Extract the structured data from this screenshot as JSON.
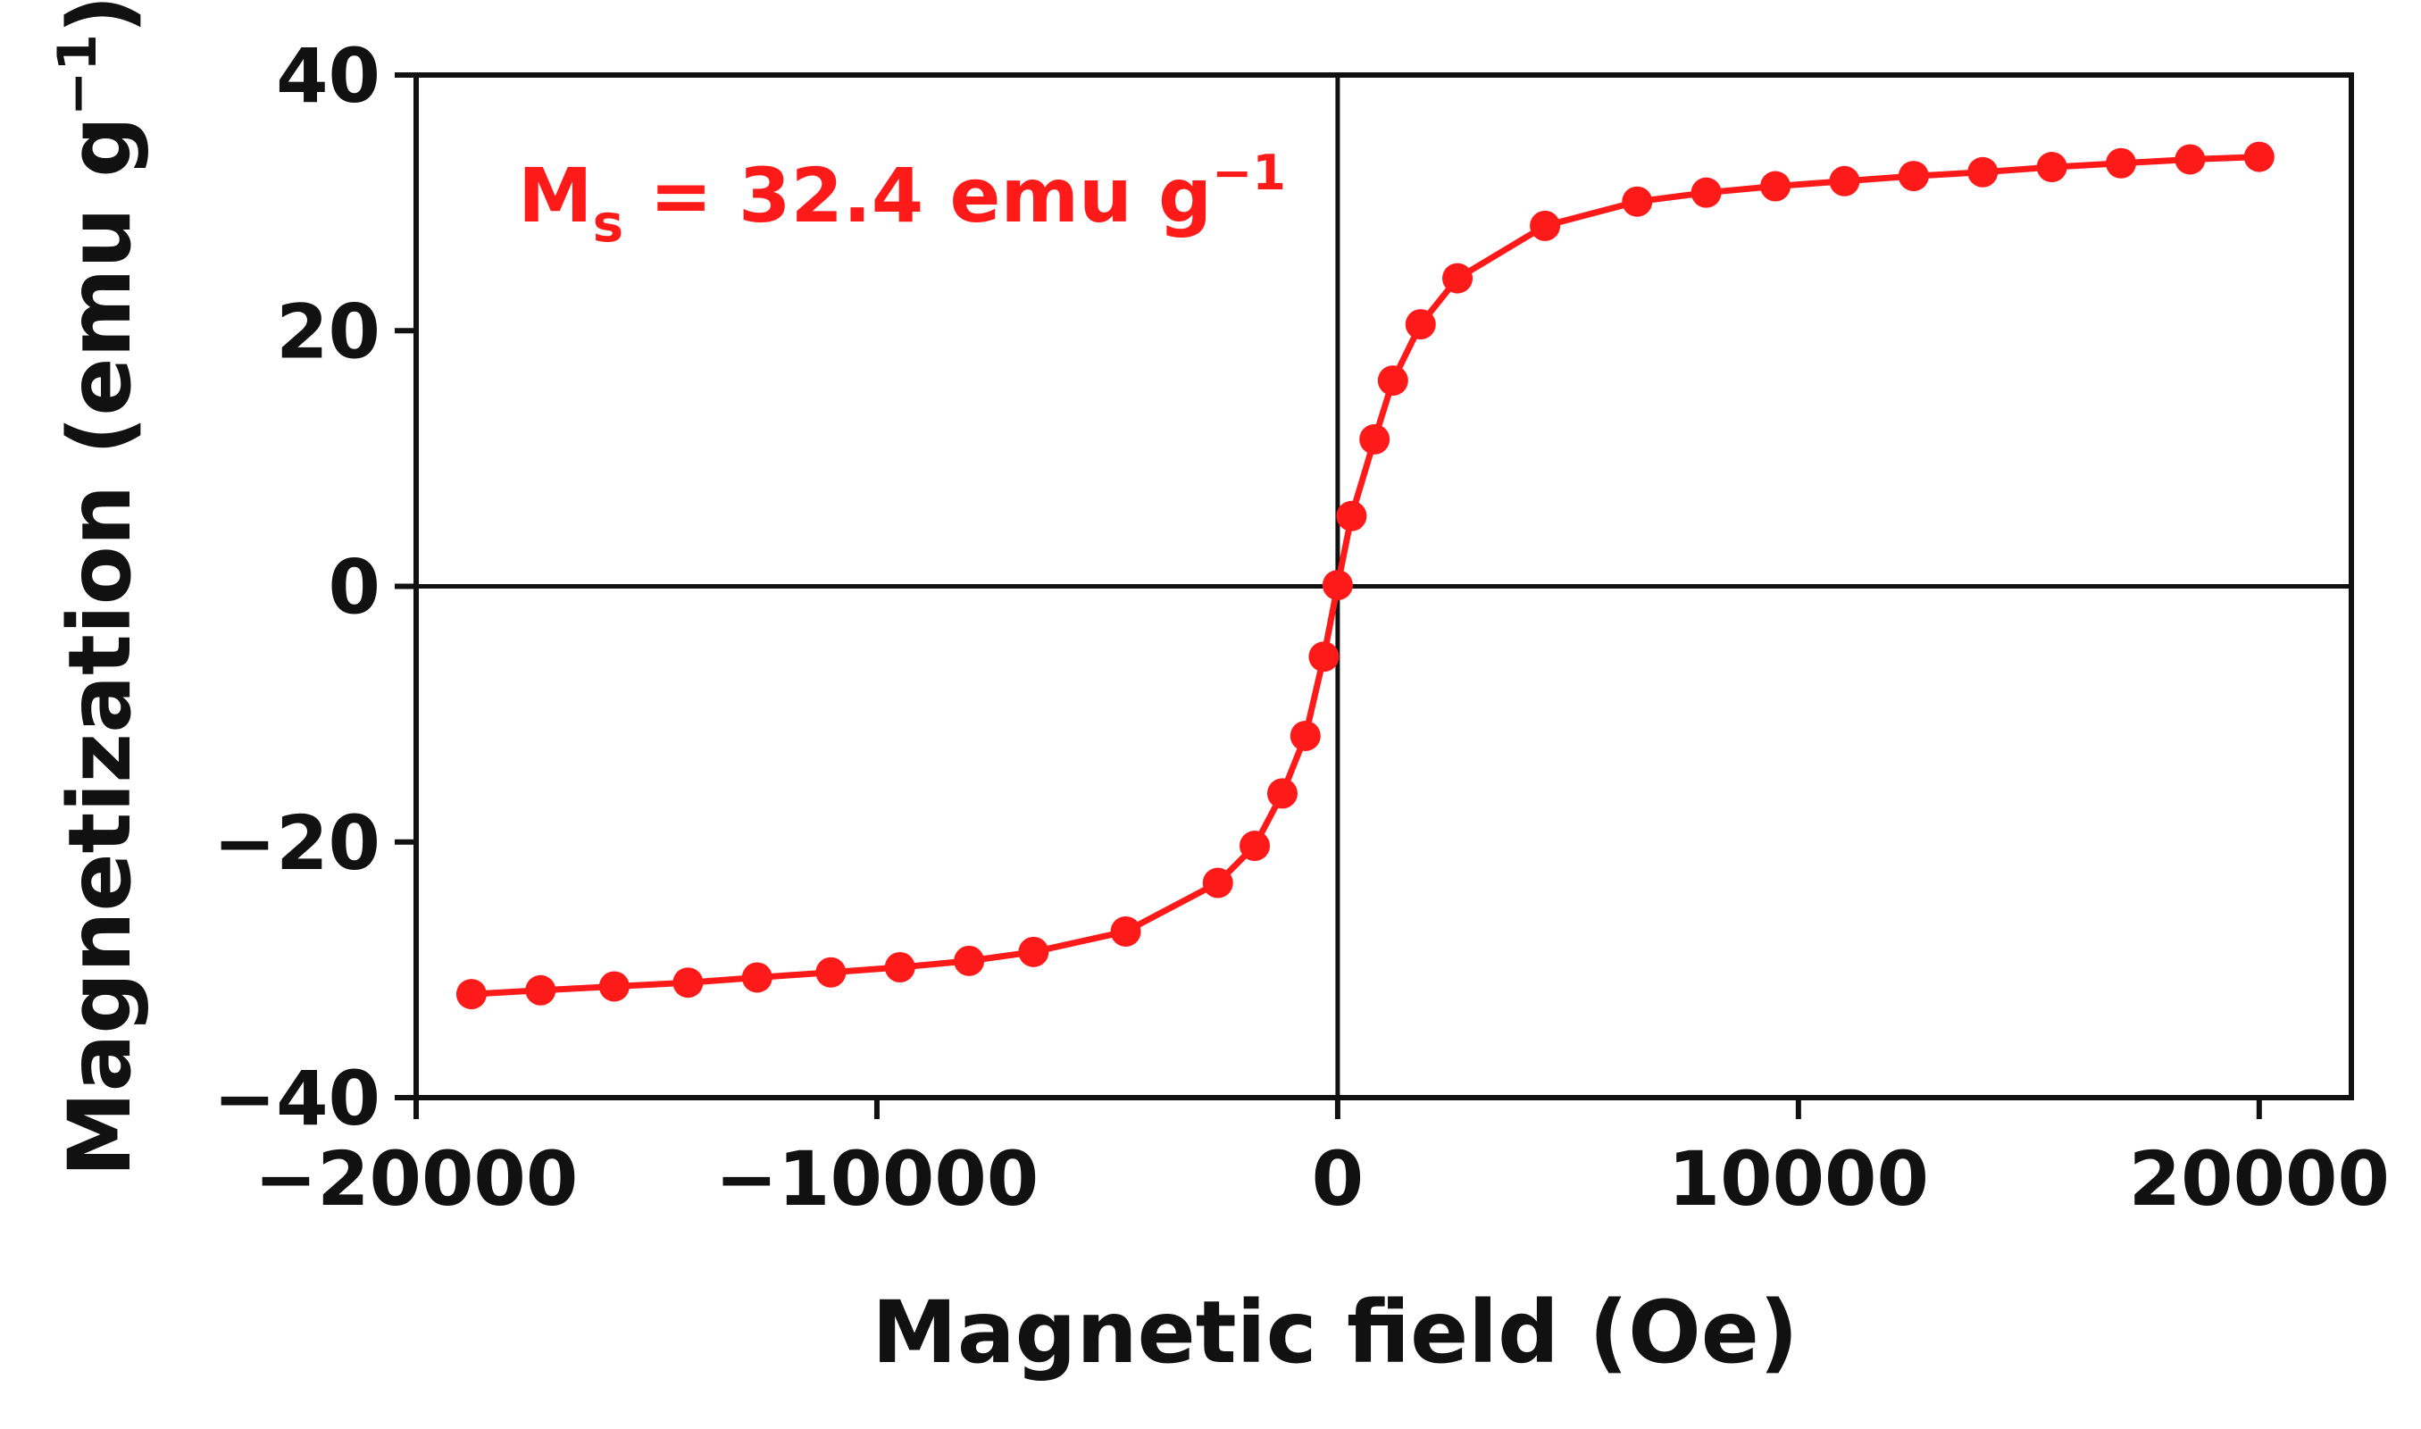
{
  "chart_data": {
    "type": "line",
    "title": "",
    "xlabel": "Magnetic field (Oe)",
    "ylabel": {
      "text": "Magnetization (emu g",
      "superscript": "−1",
      "close": ")"
    },
    "xlim": [
      -20000,
      22000
    ],
    "ylim": [
      -40,
      40
    ],
    "xticks": [
      -20000,
      -10000,
      0,
      10000,
      20000
    ],
    "xtick_labels": [
      "−20000",
      "−10000",
      "0",
      "10000",
      "20000"
    ],
    "yticks": [
      -40,
      -20,
      0,
      20,
      40
    ],
    "ytick_labels": [
      "−40",
      "−20",
      "0",
      "20",
      "40"
    ],
    "grid": false,
    "zero_lines": true,
    "annotation": {
      "main": "M",
      "subscript": "s",
      "rest": " = 32.4 emu g",
      "superscript": "−1"
    },
    "series": [
      {
        "name": "Magnetization",
        "color": "#ff1a1a",
        "marker": "circle",
        "points": [
          [
            -18800,
            -31.9
          ],
          [
            -17300,
            -31.6
          ],
          [
            -15700,
            -31.3
          ],
          [
            -14100,
            -31.0
          ],
          [
            -12600,
            -30.6
          ],
          [
            -11000,
            -30.2
          ],
          [
            -9500,
            -29.8
          ],
          [
            -8000,
            -29.3
          ],
          [
            -6600,
            -28.6
          ],
          [
            -4600,
            -27.0
          ],
          [
            -2600,
            -23.2
          ],
          [
            -1800,
            -20.3
          ],
          [
            -1200,
            -16.2
          ],
          [
            -700,
            -11.7
          ],
          [
            -300,
            -5.5
          ],
          [
            0,
            0.1
          ],
          [
            300,
            5.5
          ],
          [
            800,
            11.5
          ],
          [
            1200,
            16.1
          ],
          [
            1800,
            20.5
          ],
          [
            2600,
            24.1
          ],
          [
            4500,
            28.2
          ],
          [
            6500,
            30.1
          ],
          [
            8000,
            30.8
          ],
          [
            9500,
            31.3
          ],
          [
            11000,
            31.7
          ],
          [
            12500,
            32.1
          ],
          [
            14000,
            32.4
          ],
          [
            15500,
            32.8
          ],
          [
            17000,
            33.1
          ],
          [
            18500,
            33.4
          ],
          [
            20000,
            33.6
          ]
        ]
      }
    ]
  }
}
